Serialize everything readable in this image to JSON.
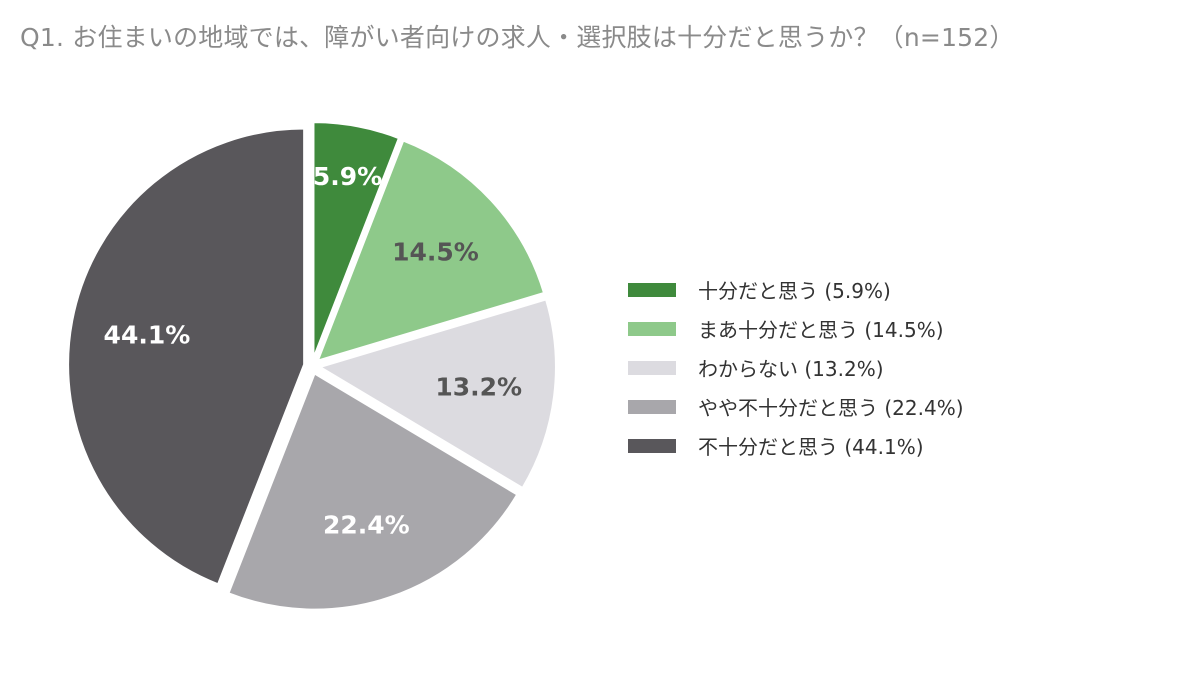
{
  "chart_data": {
    "type": "pie",
    "title": "Q1. お住まいの地域では、障がい者向けの求人・選択肢は十分だと思うか？（n=152）",
    "slices": [
      {
        "label": "十分だと思う",
        "value": 5.9,
        "display": "5.9%",
        "legend": "十分だと思う (5.9%)",
        "color": "#3f8a3c",
        "label_color": "#ffffff"
      },
      {
        "label": "まあ十分だと思う",
        "value": 14.5,
        "display": "14.5%",
        "legend": "まあ十分だと思う (14.5%)",
        "color": "#8ec98a",
        "label_color": "#555555"
      },
      {
        "label": "わからない",
        "value": 13.2,
        "display": "13.2%",
        "legend": "わからない (13.2%)",
        "color": "#dcdbe0",
        "label_color": "#555555"
      },
      {
        "label": "やや不十分だと思う",
        "value": 22.4,
        "display": "22.4%",
        "legend": "やや不十分だと思う (22.4%)",
        "color": "#a8a7ab",
        "label_color": "#ffffff"
      },
      {
        "label": "不十分だと思う",
        "value": 44.1,
        "display": "44.1%",
        "legend": "不十分だと思う (44.1%)",
        "color": "#59575b",
        "label_color": "#ffffff"
      }
    ],
    "start_angle": "12 o'clock",
    "direction": "clockwise",
    "legend_position": "right"
  }
}
